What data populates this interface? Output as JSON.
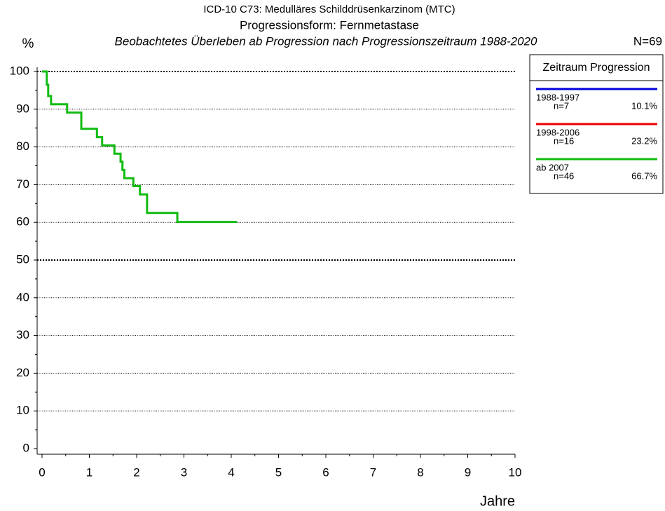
{
  "chart_data": {
    "type": "line",
    "title": "ICD-10 C73: Medulläres Schilddrüsenkarzinom (MTC)",
    "subtitle": "Progressionsform: Fernmetastase",
    "caption": "Beobachtetes Überleben ab Progression nach Progressionszeitraum 1988-2020",
    "total": "N=69",
    "y_label": "%",
    "x_label": "Jahre",
    "legend_title": "Zeitraum Progression",
    "step": true,
    "grid": true,
    "legend": "upper right",
    "xlim": [
      0,
      10
    ],
    "xticks": [
      0,
      1,
      2,
      3,
      4,
      5,
      6,
      7,
      8,
      9,
      10
    ],
    "ylim": [
      0,
      100
    ],
    "yticks": [
      0,
      10,
      20,
      30,
      40,
      50,
      60,
      70,
      80,
      90,
      100
    ],
    "series": [
      {
        "name": "1988-1997",
        "color": "#0000dd",
        "n_text": "n=7",
        "share_text": "10.1%"
      },
      {
        "name": "1998-2006",
        "color": "#ee0000",
        "n_text": "n=16",
        "share_text": "23.2%"
      },
      {
        "name": "ab 2007",
        "color": "#11bb11",
        "n_text": "n=46",
        "share_text": "66.7%",
        "x": [
          0,
          0.1,
          0.13,
          0.19,
          0.53,
          0.83,
          1.16,
          1.27,
          1.53,
          1.66,
          1.7,
          1.74,
          1.93,
          2.07,
          2.22,
          2.86,
          4.12
        ],
        "values": [
          100,
          96.5,
          93.5,
          91.3,
          89.1,
          84.8,
          82.6,
          80.4,
          78.2,
          76.1,
          73.9,
          71.7,
          69.6,
          67.4,
          62.5,
          60.1,
          60.1
        ]
      }
    ]
  }
}
